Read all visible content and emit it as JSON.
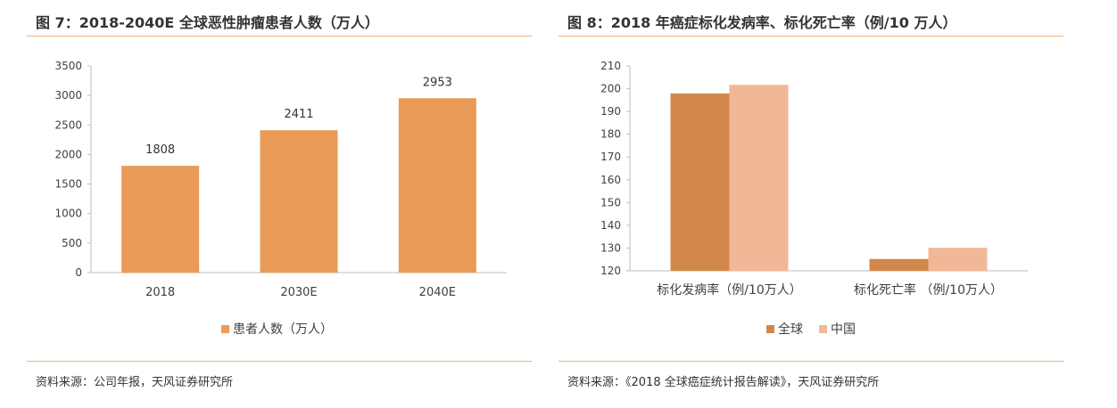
{
  "left": {
    "title": "图 7：2018-2040E 全球恶性肿瘤患者人数（万人）",
    "source": "资料来源：公司年报，天风证券研究所"
  },
  "right": {
    "title": "图 8：2018 年癌症标化发病率、标化死亡率（例/10 万人）",
    "source": "资料来源：《2018 全球癌症统计报告解读》，天风证券研究所"
  },
  "chart_data": [
    {
      "type": "bar",
      "categories": [
        "2018",
        "2030E",
        "2040E"
      ],
      "series": [
        {
          "name": "患者人数（万人）",
          "values": [
            1808,
            2411,
            2953
          ],
          "color": "#e99b57"
        }
      ],
      "data_labels": [
        "1808",
        "2411",
        "2953"
      ],
      "ylim": [
        0,
        3500
      ],
      "yticks": [
        0,
        500,
        1000,
        1500,
        2000,
        2500,
        3000,
        3500
      ],
      "grid": false,
      "legend_position": "bottom"
    },
    {
      "type": "bar",
      "categories": [
        "标化发病率（例/10万人）",
        "标化死亡率 （例/10万人）"
      ],
      "series": [
        {
          "name": "全球",
          "values": [
            197.9,
            125.2
          ],
          "color": "#d2884a"
        },
        {
          "name": "中国",
          "values": [
            201.7,
            130.1
          ],
          "color": "#f0b896"
        }
      ],
      "ylim": [
        120,
        210
      ],
      "yticks": [
        120,
        130,
        140,
        150,
        160,
        170,
        180,
        190,
        200,
        210
      ],
      "grid": false,
      "legend_position": "bottom"
    }
  ]
}
